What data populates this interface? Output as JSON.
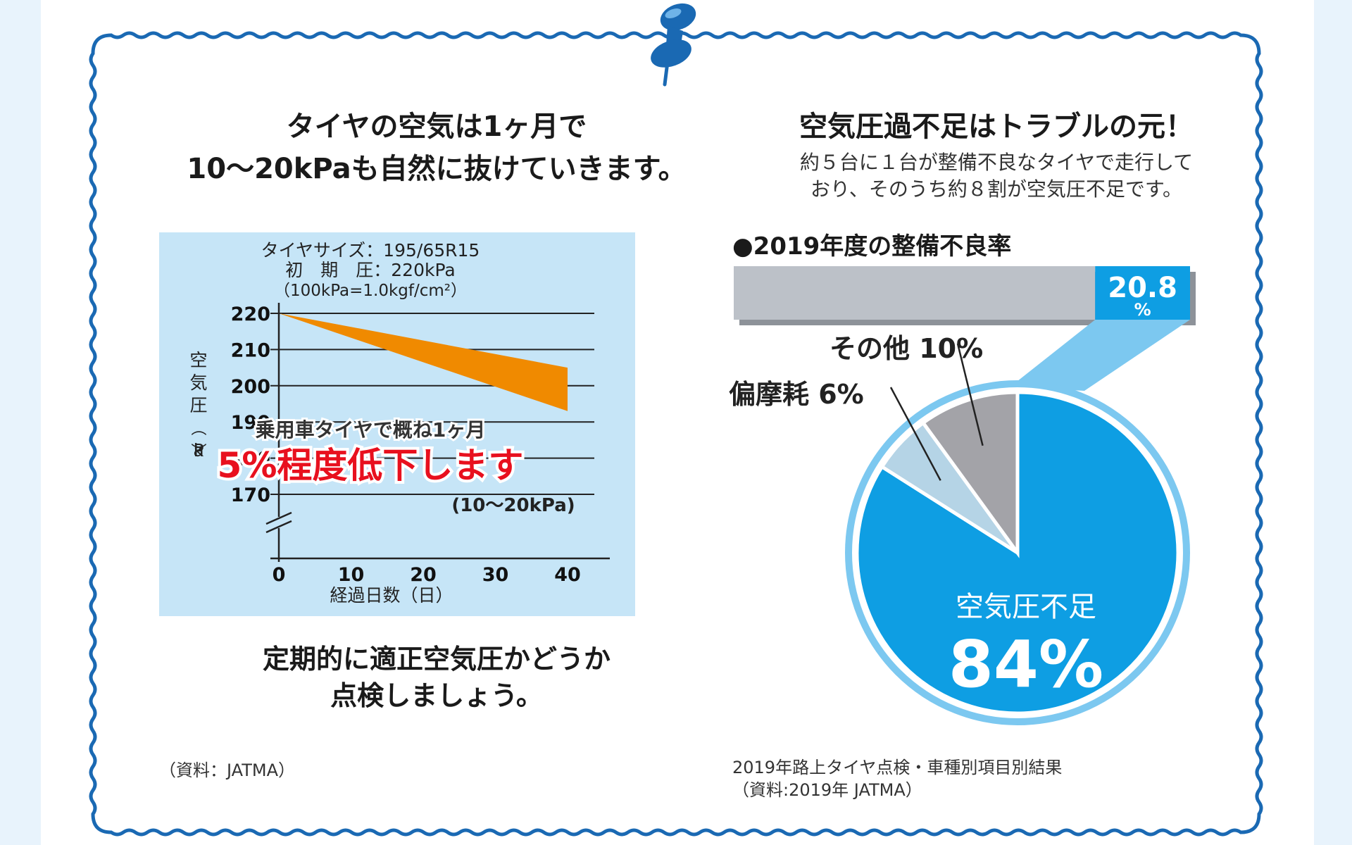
{
  "left_panel": {
    "heading_line1": "タイヤの空気は1ヶ月で",
    "heading_line2": "10～20kPaも自然に抜けていきます。",
    "note_line1": "定期的に適正空気圧かどうか",
    "note_line2": "点検しましょう。",
    "source": "（資料：JATMA）"
  },
  "right_panel": {
    "heading": "空気圧過不足はトラブルの元！",
    "sub_line1": "約５台に１台が整備不良なタイヤで走行して",
    "sub_line2": "おり、そのうち約８割が空気圧不足です。",
    "rate_title": "●2019年度の整備不良率",
    "source_line1": "2019年路上タイヤ点検・車種別項目別結果",
    "source_line2": "（資料:2019年 JATMA）"
  },
  "chart_data": [
    {
      "type": "area",
      "info_line1": "タイヤサイズ：195/65R15",
      "info_line2": "初　期　圧：220kPa",
      "info_line3": "（100kPa=1.0kgf/cm²）",
      "xlabel": "経過日数（日）",
      "ylabel": "空気圧（kPa）",
      "x_ticks": [
        "0",
        "10",
        "20",
        "30",
        "40"
      ],
      "y_ticks": [
        "220",
        "210",
        "200",
        "190",
        "180",
        "170"
      ],
      "xlim": [
        0,
        40
      ],
      "ylim": [
        170,
        220
      ],
      "axis_break": true,
      "grid": true,
      "series": [
        {
          "x": [
            0,
            40
          ],
          "upper": [
            220,
            205
          ],
          "lower": [
            220,
            193
          ],
          "color": "#f08a00"
        }
      ],
      "annotation_line1": "乗用車タイヤで概ね1ヶ月",
      "annotation_line2": "5%程度低下します",
      "annotation_line3": "(10～20kPa)",
      "colors": {
        "background": "#c6e5f7",
        "annotation_red": "#e8101e"
      }
    },
    {
      "type": "bar",
      "orientation": "horizontal-stacked",
      "segments": [
        {
          "label": "",
          "value": 79.2,
          "color": "#bcc1c8"
        },
        {
          "label": "20.8",
          "unit": "%",
          "value": 20.8,
          "color": "#0e9ee3"
        }
      ],
      "xlim": [
        0,
        100
      ]
    },
    {
      "type": "pie",
      "slices": [
        {
          "label": "空気圧不足",
          "value": 84,
          "display": "84%",
          "color": "#0e9ee3"
        },
        {
          "label": "偏摩耗 6%",
          "value": 6,
          "color": "#b5d4e6"
        },
        {
          "label": "その他 10%",
          "value": 10,
          "color": "#a3a3a8"
        }
      ],
      "colors": {
        "connector": "#7cc8f0",
        "ring": "#7cc8f0"
      }
    }
  ]
}
